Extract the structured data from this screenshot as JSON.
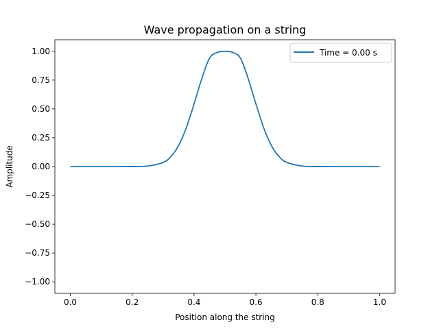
{
  "chart_data": {
    "type": "line",
    "title": "Wave propagation on a string",
    "xlabel": "Position along the string",
    "ylabel": "Amplitude",
    "xlim": [
      -0.05,
      1.05
    ],
    "ylim": [
      -1.1,
      1.1
    ],
    "xticks": [
      0.0,
      0.2,
      0.4,
      0.6,
      0.8,
      1.0
    ],
    "xtick_labels": [
      "0.0",
      "0.2",
      "0.4",
      "0.6",
      "0.8",
      "1.0"
    ],
    "yticks": [
      -1.0,
      -0.75,
      -0.5,
      -0.25,
      0.0,
      0.25,
      0.5,
      0.75,
      1.0
    ],
    "ytick_labels": [
      "−1.00",
      "−0.75",
      "−0.50",
      "−0.25",
      "0.00",
      "0.25",
      "0.50",
      "0.75",
      "1.00"
    ],
    "grid": false,
    "legend_position": "top-right",
    "series": [
      {
        "name": "Time = 0.00 s",
        "color": "#1f77b4",
        "x": [
          0.0,
          0.1,
          0.2,
          0.25,
          0.3,
          0.325,
          0.35,
          0.375,
          0.4,
          0.425,
          0.45,
          0.475,
          0.5,
          0.525,
          0.55,
          0.575,
          0.6,
          0.625,
          0.65,
          0.675,
          0.7,
          0.75,
          0.8,
          0.9,
          1.0
        ],
        "y": [
          0.0,
          0.0,
          0.0003,
          0.0044,
          0.0356,
          0.0863,
          0.1827,
          0.3374,
          0.5434,
          0.7628,
          0.9402,
          0.99,
          1.0,
          0.99,
          0.9402,
          0.7628,
          0.5434,
          0.3374,
          0.1827,
          0.0863,
          0.0356,
          0.0044,
          0.0003,
          0.0,
          0.0
        ]
      }
    ]
  }
}
